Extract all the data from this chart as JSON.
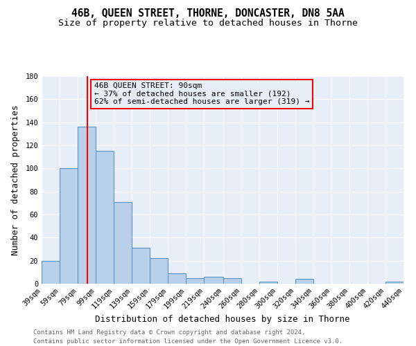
{
  "title": "46B, QUEEN STREET, THORNE, DONCASTER, DN8 5AA",
  "subtitle": "Size of property relative to detached houses in Thorne",
  "xlabel": "Distribution of detached houses by size in Thorne",
  "ylabel": "Number of detached properties",
  "footnote1": "Contains HM Land Registry data © Crown copyright and database right 2024.",
  "footnote2": "Contains public sector information licensed under the Open Government Licence v3.0.",
  "bin_edges": [
    39,
    59,
    79,
    99,
    119,
    139,
    159,
    179,
    199,
    219,
    240,
    260,
    280,
    300,
    320,
    340,
    360,
    380,
    400,
    420,
    440
  ],
  "bin_heights": [
    20,
    100,
    136,
    115,
    71,
    31,
    22,
    9,
    5,
    6,
    5,
    0,
    2,
    0,
    4,
    0,
    0,
    0,
    0,
    2
  ],
  "bar_color": "#b8d0ea",
  "bar_edge_color": "#5a96c8",
  "vline_x": 90,
  "vline_color": "red",
  "annotation_box_text": "46B QUEEN STREET: 90sqm\n← 37% of detached houses are smaller (192)\n62% of semi-detached houses are larger (319) →",
  "ylim": [
    0,
    180
  ],
  "yticks": [
    0,
    20,
    40,
    60,
    80,
    100,
    120,
    140,
    160,
    180
  ],
  "bg_color": "#e8eef8",
  "plot_bg_color": "#e8eef8",
  "grid_color": "#ffffff",
  "title_fontsize": 10.5,
  "subtitle_fontsize": 9.5,
  "axis_label_fontsize": 9,
  "tick_label_fontsize": 7.5,
  "footnote_color": "#666666"
}
